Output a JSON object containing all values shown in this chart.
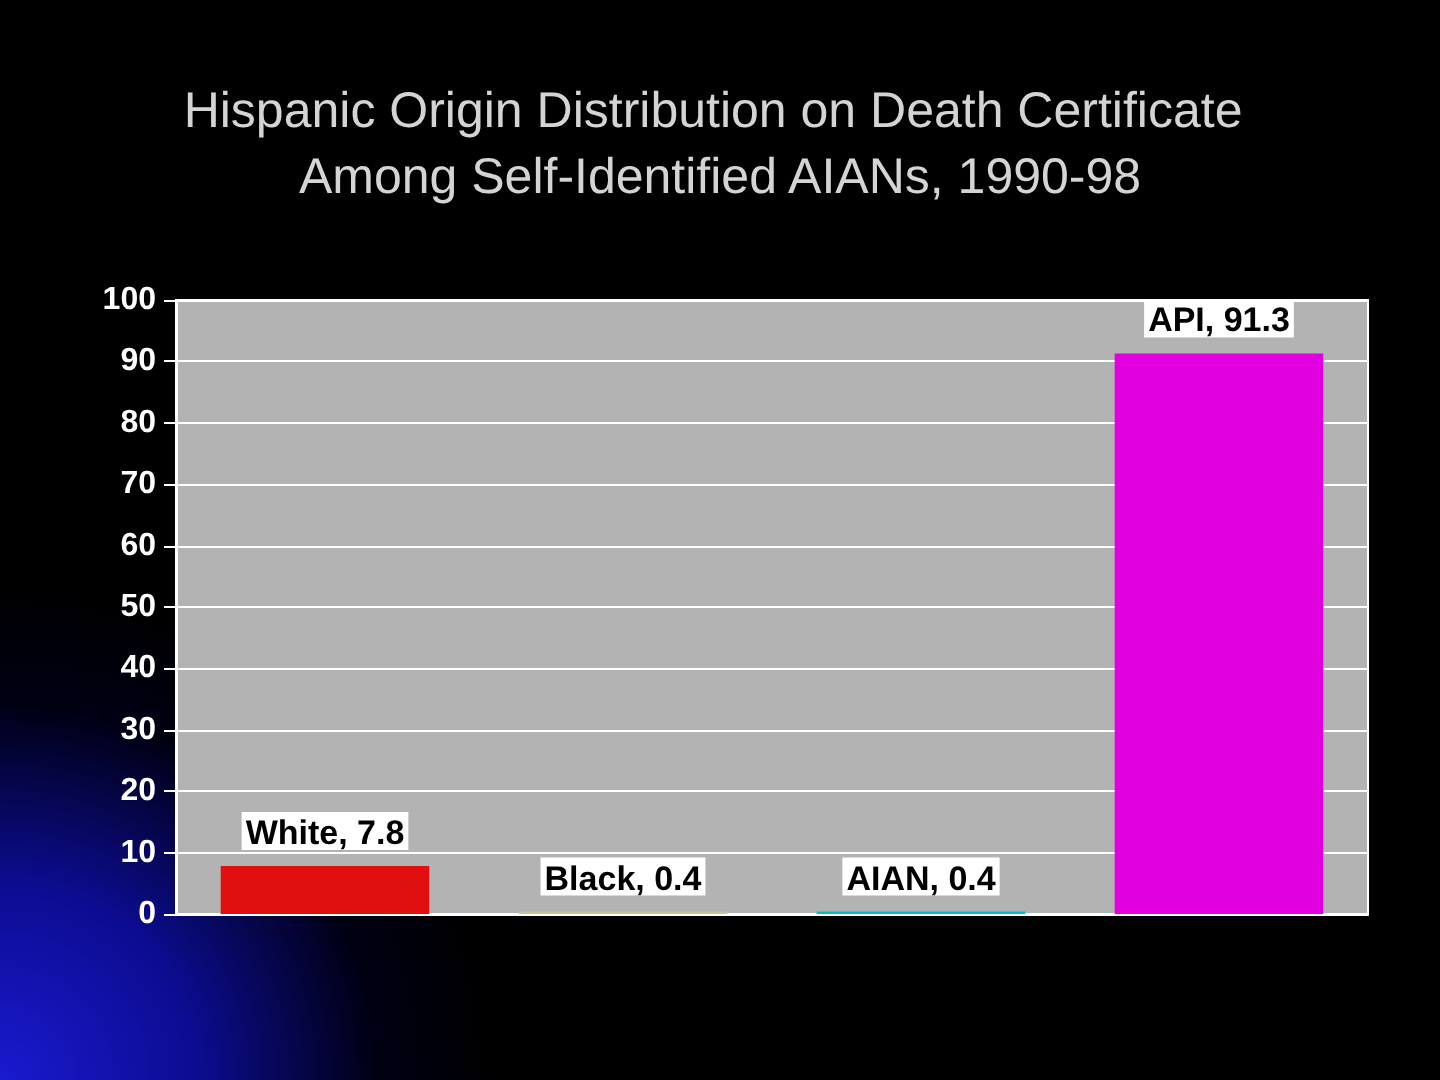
{
  "chart_data": {
    "type": "bar",
    "title": "Hispanic Origin Distribution on Death Certificate Among Self-Identified AIANs, 1990-98",
    "categories": [
      null,
      null,
      null,
      null
    ],
    "values": [
      7.8,
      0.4,
      0.4,
      91.3
    ],
    "colors": [
      "#e01010",
      "#c8c49c",
      "#00bfbf",
      "#e000e0"
    ],
    "value_labels": [
      "White, 7.8",
      "Black, 0.4",
      "AIAN, 0.4",
      "API, 91.3"
    ],
    "ylim": [
      0,
      100
    ],
    "yticks": [
      0,
      10,
      20,
      30,
      40,
      50,
      60,
      70,
      80,
      90,
      100
    ],
    "grid": "y"
  }
}
